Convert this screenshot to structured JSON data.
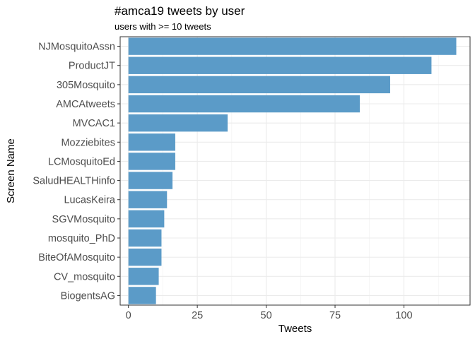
{
  "chart_data": {
    "type": "bar",
    "orientation": "horizontal",
    "title": "#amca19 tweets by user",
    "subtitle": "users with >= 10 tweets",
    "xlabel": "Tweets",
    "ylabel": "Screen Name",
    "xlim": [
      -3,
      124
    ],
    "x_ticks": [
      0,
      25,
      50,
      75,
      100
    ],
    "grid": true,
    "bar_color": "#5b9bc8",
    "categories": [
      "NJMosquitoAssn",
      "ProductJT",
      "305Mosquito",
      "AMCAtweets",
      "MVCAC1",
      "Mozziebites",
      "LCMosquitoEd",
      "SaludHEALTHinfo",
      "LucasKeira",
      "SGVMosquito",
      "mosquito_PhD",
      "BiteOfAMosquito",
      "CV_mosquito",
      "BiogentsAG"
    ],
    "values": [
      119,
      110,
      95,
      84,
      36,
      17,
      17,
      16,
      14,
      13,
      12,
      12,
      11,
      10
    ]
  }
}
